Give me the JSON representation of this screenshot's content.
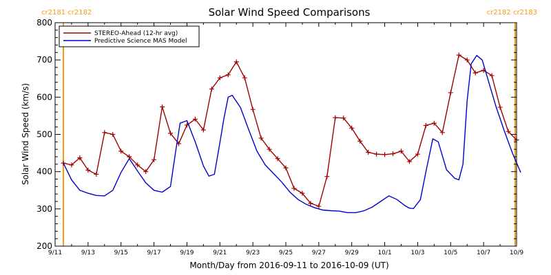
{
  "chart_data": {
    "type": "line",
    "title": "Solar Wind Speed Comparisons",
    "xlabel": "Month/Day from 2016-09-11 to 2016-10-09 (UT)",
    "ylabel": "Solar Wind Speed (km/s)",
    "xlim": [
      "2016-09-11",
      "2016-10-09"
    ],
    "ylim": [
      200,
      800
    ],
    "yticks": [
      200,
      300,
      400,
      500,
      600,
      700,
      800
    ],
    "xticks": [
      {
        "date": "2016-09-11",
        "label": "9/11"
      },
      {
        "date": "2016-09-13",
        "label": "9/13"
      },
      {
        "date": "2016-09-15",
        "label": "9/15"
      },
      {
        "date": "2016-09-17",
        "label": "9/17"
      },
      {
        "date": "2016-09-19",
        "label": "9/19"
      },
      {
        "date": "2016-09-21",
        "label": "9/21"
      },
      {
        "date": "2016-09-23",
        "label": "9/23"
      },
      {
        "date": "2016-09-25",
        "label": "9/25"
      },
      {
        "date": "2016-09-27",
        "label": "9/27"
      },
      {
        "date": "2016-09-29",
        "label": "9/29"
      },
      {
        "date": "2016-10-01",
        "label": "10/1"
      },
      {
        "date": "2016-10-03",
        "label": "10/3"
      },
      {
        "date": "2016-10-05",
        "label": "10/5"
      },
      {
        "date": "2016-10-07",
        "label": "10/7"
      },
      {
        "date": "2016-10-09",
        "label": "10/9"
      }
    ],
    "legend_position": "top-left",
    "rotation_markers": [
      {
        "date": "2016-09-11T12:00",
        "label": "cr2181 cr2182",
        "color": "#f59a12",
        "label_side": "left"
      },
      {
        "date": "2016-10-08T22:00",
        "label": "cr2182 cr2183",
        "color": "#f59a12",
        "label_side": "right"
      }
    ],
    "series": [
      {
        "name": "STEREO-Ahead (12-hr avg)",
        "color": "#a00000",
        "marker": "plus",
        "points": [
          [
            "2016-09-11T12:00",
            423
          ],
          [
            "2016-09-12T00:00",
            418
          ],
          [
            "2016-09-12T12:00",
            437
          ],
          [
            "2016-09-13T00:00",
            404
          ],
          [
            "2016-09-13T12:00",
            393
          ],
          [
            "2016-09-14T00:00",
            505
          ],
          [
            "2016-09-14T12:00",
            500
          ],
          [
            "2016-09-15T00:00",
            455
          ],
          [
            "2016-09-15T12:00",
            440
          ],
          [
            "2016-09-16T00:00",
            418
          ],
          [
            "2016-09-16T12:00",
            400
          ],
          [
            "2016-09-17T00:00",
            432
          ],
          [
            "2016-09-17T12:00",
            574
          ],
          [
            "2016-09-18T00:00",
            503
          ],
          [
            "2016-09-18T12:00",
            475
          ],
          [
            "2016-09-19T00:00",
            525
          ],
          [
            "2016-09-19T12:00",
            541
          ],
          [
            "2016-09-20T00:00",
            512
          ],
          [
            "2016-09-20T12:00",
            622
          ],
          [
            "2016-09-21T00:00",
            652
          ],
          [
            "2016-09-21T12:00",
            660
          ],
          [
            "2016-09-22T00:00",
            695
          ],
          [
            "2016-09-22T12:00",
            652
          ],
          [
            "2016-09-23T00:00",
            567
          ],
          [
            "2016-09-23T12:00",
            490
          ],
          [
            "2016-09-24T00:00",
            460
          ],
          [
            "2016-09-24T12:00",
            435
          ],
          [
            "2016-09-25T00:00",
            410
          ],
          [
            "2016-09-25T12:00",
            355
          ],
          [
            "2016-09-26T00:00",
            342
          ],
          [
            "2016-09-26T12:00",
            315
          ],
          [
            "2016-09-27T00:00",
            307
          ],
          [
            "2016-09-27T12:00",
            387
          ],
          [
            "2016-09-28T00:00",
            545
          ],
          [
            "2016-09-28T12:00",
            544
          ],
          [
            "2016-09-29T00:00",
            517
          ],
          [
            "2016-09-29T12:00",
            482
          ],
          [
            "2016-09-30T00:00",
            452
          ],
          [
            "2016-09-30T12:00",
            447
          ],
          [
            "2016-10-01T00:00",
            446
          ],
          [
            "2016-10-01T12:00",
            448
          ],
          [
            "2016-10-02T00:00",
            455
          ],
          [
            "2016-10-02T12:00",
            427
          ],
          [
            "2016-10-03T00:00",
            447
          ],
          [
            "2016-10-03T12:00",
            524
          ],
          [
            "2016-10-04T00:00",
            530
          ],
          [
            "2016-10-04T12:00",
            505
          ],
          [
            "2016-10-05T00:00",
            612
          ],
          [
            "2016-10-05T12:00",
            713
          ],
          [
            "2016-10-06T00:00",
            700
          ],
          [
            "2016-10-06T12:00",
            665
          ],
          [
            "2016-10-07T00:00",
            672
          ],
          [
            "2016-10-07T12:00",
            658
          ],
          [
            "2016-10-08T00:00",
            573
          ],
          [
            "2016-10-08T12:00",
            508
          ],
          [
            "2016-10-09T00:00",
            485
          ]
        ]
      },
      {
        "name": "Predictive Science MAS Model",
        "color": "#0000cc",
        "marker": "none",
        "points": [
          [
            "2016-09-11T12:00",
            423
          ],
          [
            "2016-09-12T00:00",
            378
          ],
          [
            "2016-09-12T12:00",
            350
          ],
          [
            "2016-09-13T00:00",
            342
          ],
          [
            "2016-09-13T12:00",
            336
          ],
          [
            "2016-09-14T00:00",
            335
          ],
          [
            "2016-09-14T12:00",
            350
          ],
          [
            "2016-09-15T00:00",
            398
          ],
          [
            "2016-09-15T12:00",
            435
          ],
          [
            "2016-09-16T00:00",
            402
          ],
          [
            "2016-09-16T12:00",
            370
          ],
          [
            "2016-09-17T00:00",
            350
          ],
          [
            "2016-09-17T12:00",
            345
          ],
          [
            "2016-09-18T00:00",
            360
          ],
          [
            "2016-09-18T08:00",
            460
          ],
          [
            "2016-09-18T14:00",
            530
          ],
          [
            "2016-09-19T00:00",
            537
          ],
          [
            "2016-09-19T12:00",
            480
          ],
          [
            "2016-09-20T00:00",
            415
          ],
          [
            "2016-09-20T08:00",
            388
          ],
          [
            "2016-09-20T16:00",
            393
          ],
          [
            "2016-09-21T00:00",
            478
          ],
          [
            "2016-09-21T06:00",
            545
          ],
          [
            "2016-09-21T12:00",
            600
          ],
          [
            "2016-09-21T18:00",
            605
          ],
          [
            "2016-09-22T06:00",
            572
          ],
          [
            "2016-09-22T18:00",
            512
          ],
          [
            "2016-09-23T06:00",
            455
          ],
          [
            "2016-09-23T18:00",
            418
          ],
          [
            "2016-09-24T06:00",
            395
          ],
          [
            "2016-09-24T18:00",
            372
          ],
          [
            "2016-09-25T06:00",
            345
          ],
          [
            "2016-09-25T18:00",
            325
          ],
          [
            "2016-09-26T06:00",
            312
          ],
          [
            "2016-09-26T18:00",
            303
          ],
          [
            "2016-09-27T06:00",
            297
          ],
          [
            "2016-09-27T18:00",
            295
          ],
          [
            "2016-09-28T06:00",
            294
          ],
          [
            "2016-09-28T18:00",
            290
          ],
          [
            "2016-09-29T06:00",
            290
          ],
          [
            "2016-09-29T18:00",
            295
          ],
          [
            "2016-09-30T06:00",
            305
          ],
          [
            "2016-09-30T18:00",
            320
          ],
          [
            "2016-10-01T06:00",
            335
          ],
          [
            "2016-10-01T18:00",
            325
          ],
          [
            "2016-10-02T06:00",
            308
          ],
          [
            "2016-10-02T12:00",
            302
          ],
          [
            "2016-10-02T18:00",
            301
          ],
          [
            "2016-10-03T04:00",
            325
          ],
          [
            "2016-10-03T12:00",
            400
          ],
          [
            "2016-10-03T22:00",
            488
          ],
          [
            "2016-10-04T06:00",
            480
          ],
          [
            "2016-10-04T18:00",
            405
          ],
          [
            "2016-10-05T06:00",
            382
          ],
          [
            "2016-10-05T12:00",
            378
          ],
          [
            "2016-10-05T18:00",
            420
          ],
          [
            "2016-10-06T00:00",
            590
          ],
          [
            "2016-10-06T06:00",
            690
          ],
          [
            "2016-10-06T14:00",
            712
          ],
          [
            "2016-10-06T22:00",
            700
          ],
          [
            "2016-10-07T06:00",
            650
          ],
          [
            "2016-10-07T18:00",
            575
          ],
          [
            "2016-10-08T06:00",
            510
          ],
          [
            "2016-10-08T18:00",
            450
          ],
          [
            "2016-10-09T06:00",
            398
          ]
        ]
      }
    ]
  }
}
